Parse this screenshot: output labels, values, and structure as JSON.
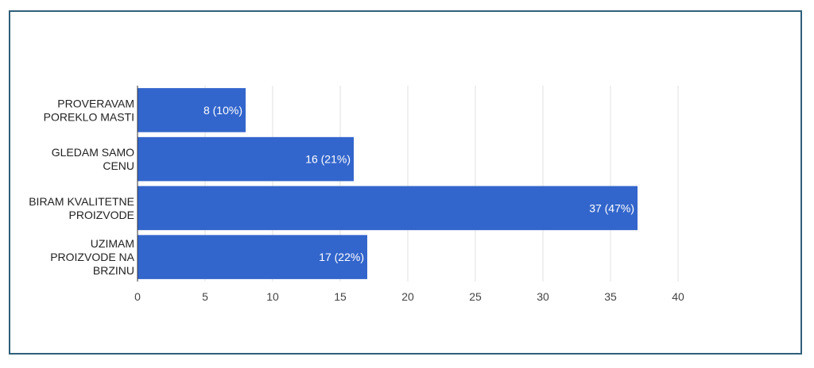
{
  "chart_data": {
    "type": "bar",
    "orientation": "horizontal",
    "categories": [
      [
        "PROVERAVAM",
        "POREKLO MASTI"
      ],
      [
        "GLEDAM SAMO",
        "CENU"
      ],
      [
        "BIRAM KVALITETNE",
        "PROIZVODE"
      ],
      [
        "UZIMAM",
        "PROIZVODE NA",
        "BRZINU"
      ]
    ],
    "values": [
      8,
      16,
      37,
      17
    ],
    "data_labels": [
      "8 (10%)",
      "16 (21%)",
      "37 (47%)",
      "17 (22%)"
    ],
    "x_ticks": [
      0,
      5,
      10,
      15,
      20,
      25,
      30,
      35,
      40
    ],
    "xlim": [
      0,
      40
    ],
    "grid": true,
    "colors": {
      "bar": "#3366cc",
      "grid": "#e0e0e0",
      "axis": "#333333",
      "frame": "#2f5f7a"
    }
  }
}
